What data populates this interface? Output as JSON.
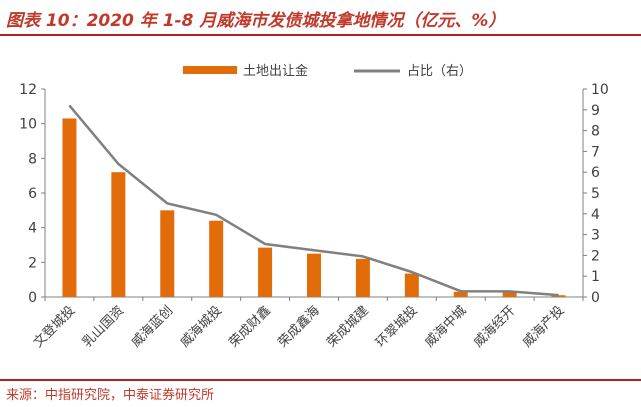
{
  "header": {
    "title": "图表 10：2020 年 1-8 月威海市发债城投拿地情况（亿元、%）"
  },
  "footer": {
    "source": "来源：中指研究院，中泰证券研究所"
  },
  "colors": {
    "bar": "#e36c0a",
    "line": "#808080",
    "title": "#c0392b",
    "rule": "#b22222",
    "axis_text": "#404040"
  },
  "chart_data": {
    "type": "bar",
    "title": "",
    "categories": [
      "文登城投",
      "乳山国资",
      "威海蓝创",
      "威海城投",
      "荣成财鑫",
      "荣成鑫海",
      "荣成城建",
      "环翠城投",
      "威海中城",
      "威海经开",
      "威海产投"
    ],
    "series": [
      {
        "name": "土地出让金",
        "type": "bar",
        "axis": "left",
        "values": [
          10.3,
          7.2,
          5.0,
          4.4,
          2.85,
          2.5,
          2.2,
          1.35,
          0.3,
          0.3,
          0.1
        ]
      },
      {
        "name": "占比（右）",
        "type": "line",
        "axis": "right",
        "values": [
          9.2,
          6.4,
          4.5,
          3.95,
          2.55,
          2.25,
          1.95,
          1.2,
          0.28,
          0.27,
          0.09
        ]
      }
    ],
    "yaxis_left": {
      "min": 0,
      "max": 12,
      "ticks": [
        0,
        2,
        4,
        6,
        8,
        10,
        12
      ]
    },
    "yaxis_right": {
      "min": 0,
      "max": 10,
      "ticks": [
        0,
        1,
        2,
        3,
        4,
        5,
        6,
        7,
        8,
        9,
        10
      ]
    },
    "legend": [
      "土地出让金",
      "占比（右）"
    ],
    "legend_position": "top-center",
    "xlabel": "",
    "ylabel": ""
  }
}
